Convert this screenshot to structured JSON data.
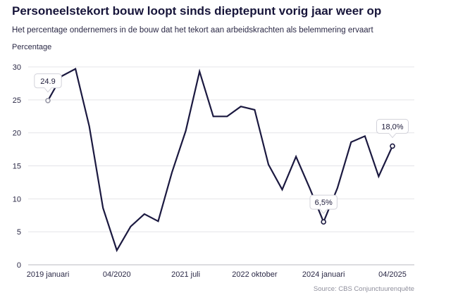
{
  "chart_data": {
    "type": "line",
    "title": "Personeelstekort bouw loopt sinds dieptepunt vorig jaar weer op",
    "subtitle": "Het percentage ondernemers in de bouw dat het tekort aan arbeidskrachten als belemmering ervaart",
    "ylabel": "Percentage",
    "source": "Source: CBS Conjunctuurenquête",
    "ylim": [
      0,
      30
    ],
    "yticks": [
      0,
      5,
      10,
      15,
      20,
      25,
      30
    ],
    "grid": true,
    "xtick_labels": [
      "2019 januari",
      "04/2020",
      "2021 juli",
      "2022 oktober",
      "2024 januari",
      "04/2025"
    ],
    "xtick_index": [
      0,
      5,
      10,
      15,
      20,
      25
    ],
    "values": [
      24.9,
      28.6,
      29.7,
      21.0,
      8.6,
      2.2,
      5.8,
      7.7,
      6.6,
      14.0,
      20.3,
      29.3,
      22.5,
      22.5,
      24.0,
      23.5,
      15.2,
      11.4,
      16.4,
      11.6,
      6.5,
      11.6,
      18.6,
      19.5,
      13.4,
      18.0
    ],
    "annotations": [
      {
        "index": 0,
        "label": "24.9"
      },
      {
        "index": 20,
        "label": "6,5%"
      },
      {
        "index": 25,
        "label": "18,0%"
      }
    ],
    "line_color": "#1b1940",
    "grid_color": "#e4e4e8"
  }
}
